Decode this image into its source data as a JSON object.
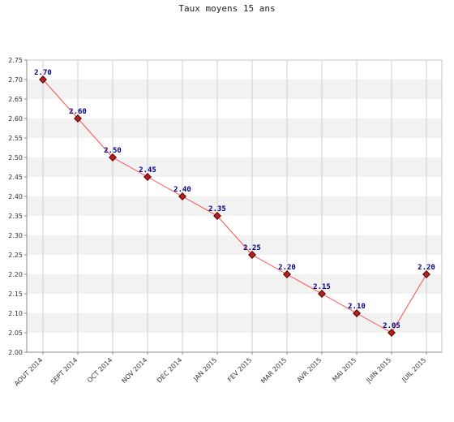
{
  "chart_data": {
    "type": "line",
    "title": "Taux moyens 15 ans",
    "xlabel": "",
    "ylabel": "",
    "categories": [
      "AOUT 2014",
      "SEPT 2014",
      "OCT 2014",
      "NOV 2014",
      "DEC 2014",
      "JAN 2015",
      "FEV 2015",
      "MAR 2015",
      "AVR 2015",
      "MAI 2015",
      "JUIN 2015",
      "JUIL 2015"
    ],
    "values": [
      2.7,
      2.6,
      2.5,
      2.45,
      2.4,
      2.35,
      2.25,
      2.2,
      2.15,
      2.1,
      2.05,
      2.2
    ],
    "value_labels": [
      "2.70",
      "2.60",
      "2.50",
      "2.45",
      "2.40",
      "2.35",
      "2.25",
      "2.20",
      "2.15",
      "2.10",
      "2.05",
      "2.20"
    ],
    "ylim": [
      2.0,
      2.75
    ],
    "yticks": [
      "2.00",
      "2.05",
      "2.10",
      "2.15",
      "2.20",
      "2.25",
      "2.30",
      "2.35",
      "2.40",
      "2.45",
      "2.50",
      "2.55",
      "2.60",
      "2.65",
      "2.70",
      "2.75"
    ],
    "grid": true,
    "colors": {
      "line": "#ff4d4d",
      "marker_fill": "#b22222",
      "marker_stroke": "#5a0000",
      "label": "#000080",
      "band": "#f2f2f2",
      "gridline": "#d0d0d0"
    }
  }
}
